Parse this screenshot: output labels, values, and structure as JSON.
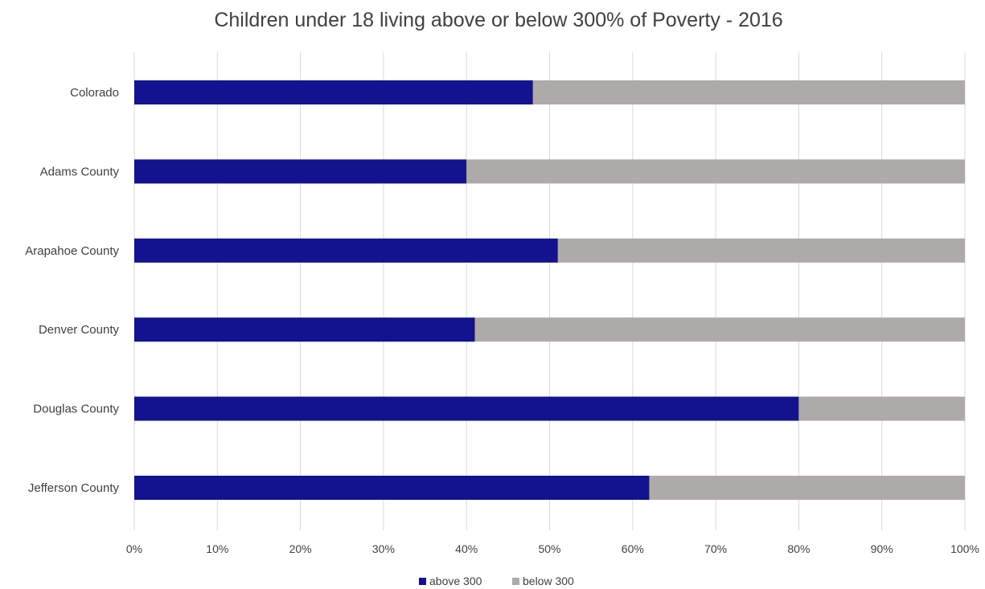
{
  "chart_data": {
    "type": "bar",
    "orientation": "horizontal",
    "stacked": "percent",
    "title": "Children under 18 living above or below 300% of Poverty - 2016",
    "categories": [
      "Colorado",
      "Adams County",
      "Arapahoe County",
      "Denver County",
      "Douglas County",
      "Jefferson County"
    ],
    "series": [
      {
        "name": "above 300",
        "color": "#13138f",
        "values": [
          48,
          40,
          51,
          41,
          80,
          62
        ]
      },
      {
        "name": "below 300",
        "color": "#aeaaaa",
        "values": [
          52,
          60,
          49,
          59,
          20,
          38
        ]
      }
    ],
    "xlim": [
      0,
      100
    ],
    "x_ticks": [
      "0%",
      "10%",
      "20%",
      "30%",
      "40%",
      "50%",
      "60%",
      "70%",
      "80%",
      "90%",
      "100%"
    ],
    "grid": true,
    "legend_position": "bottom"
  }
}
